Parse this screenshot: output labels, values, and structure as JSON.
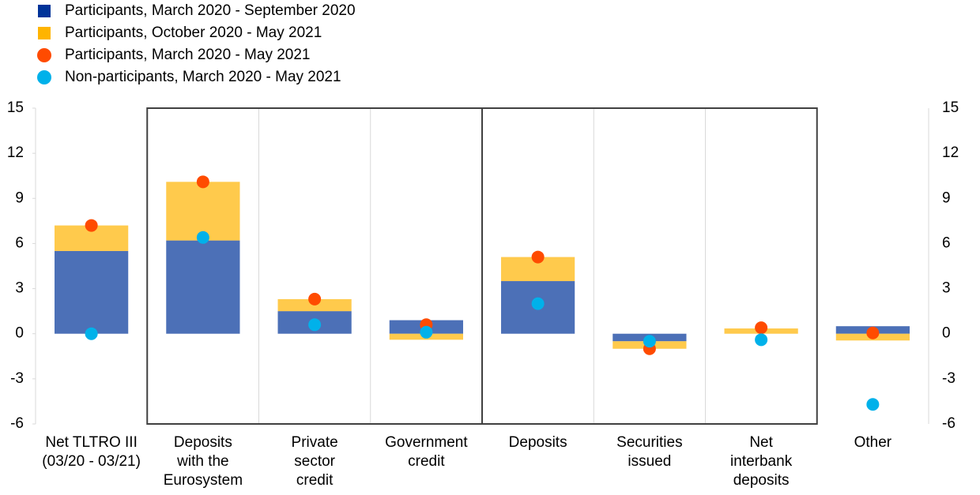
{
  "chart_data": {
    "type": "stacked-bar-dot",
    "categories": [
      [
        "Net TLTRO III",
        "(03/20 - 03/21)"
      ],
      [
        "Deposits",
        "with the",
        "Eurosystem"
      ],
      [
        "Private",
        "sector",
        "credit"
      ],
      [
        "Government",
        "credit"
      ],
      [
        "Deposits"
      ],
      [
        "Securities",
        "issued"
      ],
      [
        "Net",
        "interbank",
        "deposits"
      ],
      [
        "Other"
      ]
    ],
    "series": [
      {
        "name": "Participants, March 2020 - September 2020",
        "kind": "bar",
        "color": "#003399",
        "values": [
          5.5,
          6.2,
          1.5,
          0.9,
          3.5,
          -0.5,
          0,
          0.5
        ]
      },
      {
        "name": "Participants, October 2020 - May 2021",
        "kind": "bar",
        "color": "#ffb400",
        "values": [
          1.7,
          3.9,
          0.8,
          -0.4,
          1.6,
          -0.5,
          0.35,
          -0.45
        ]
      },
      {
        "name": "Participants, March 2020 - May 2021",
        "kind": "dot",
        "color": "#ff4b00",
        "values": [
          7.2,
          10.1,
          2.3,
          0.6,
          5.1,
          -1.0,
          0.4,
          0.05
        ]
      },
      {
        "name": "Non-participants, March 2020 - May 2021",
        "kind": "dot",
        "color": "#00b1ea",
        "values": [
          0,
          6.4,
          0.6,
          0.1,
          2.0,
          -0.5,
          -0.4,
          -4.7
        ]
      }
    ],
    "ylim": [
      -6,
      15
    ],
    "yticks": [
      -6,
      -3,
      0,
      3,
      6,
      9,
      12,
      15
    ],
    "legend": "top-left"
  }
}
